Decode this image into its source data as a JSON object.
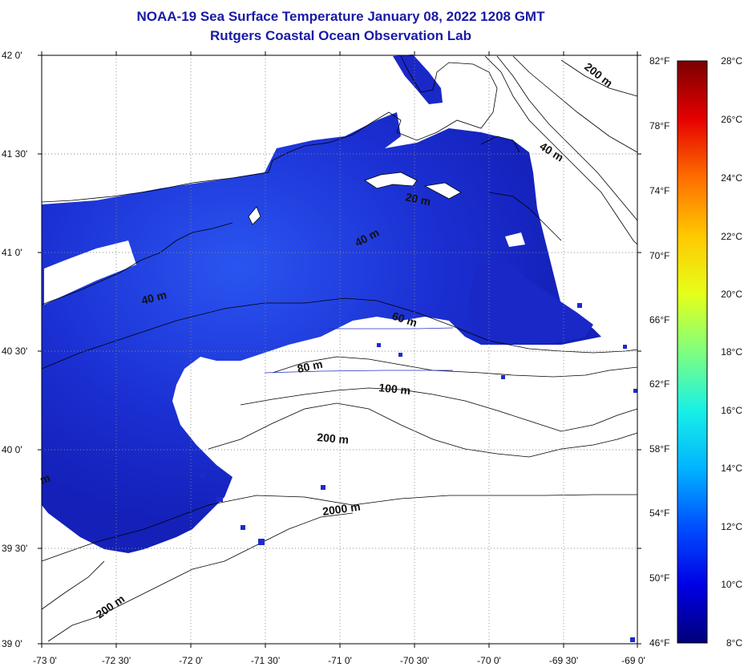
{
  "header": {
    "title": "NOAA-19 Sea Surface Temperature January 08, 2022 1208 GMT",
    "subtitle": "Rutgers Coastal Ocean Observation Lab"
  },
  "map": {
    "latitude_labels": [
      "42 0'",
      "41 30'",
      "41 0'",
      "40 30'",
      "40 0'",
      "39 30'",
      "39 0'"
    ],
    "longitude_labels": [
      "-73 0'",
      "-72 30'",
      "-72 0'",
      "-71 30'",
      "-71 0'",
      "-70 30'",
      "-70 0'",
      "-69 30'",
      "-69 0'"
    ],
    "depth_contour_labels": [
      "200 m",
      "40 m",
      "20 m",
      "40 m",
      "40 m",
      "60 m",
      "80 m",
      "100 m",
      "200 m",
      "2000 m",
      "200 m",
      "m"
    ],
    "colors": {
      "land_and_cloud": "#ffffff",
      "contour": "#000000",
      "ocean_water": "#1e2ccf",
      "title": "#1a1aa6"
    }
  },
  "colorbar": {
    "fahrenheit_labels": [
      "82°F",
      "78°F",
      "74°F",
      "70°F",
      "66°F",
      "62°F",
      "58°F",
      "54°F",
      "50°F",
      "46°F"
    ],
    "celsius_labels": [
      "28°C",
      "26°C",
      "24°C",
      "22°C",
      "20°C",
      "18°C",
      "16°C",
      "14°C",
      "12°C",
      "10°C",
      "8°C"
    ],
    "range_celsius": [
      8,
      28
    ],
    "range_fahrenheit": [
      46,
      82
    ],
    "color_stops": [
      "#00007a",
      "#0000e6",
      "#0050ff",
      "#00b4ff",
      "#19f0e6",
      "#7fff7f",
      "#e6ff19",
      "#ffc800",
      "#ff6e00",
      "#e60000",
      "#7a0000"
    ]
  }
}
